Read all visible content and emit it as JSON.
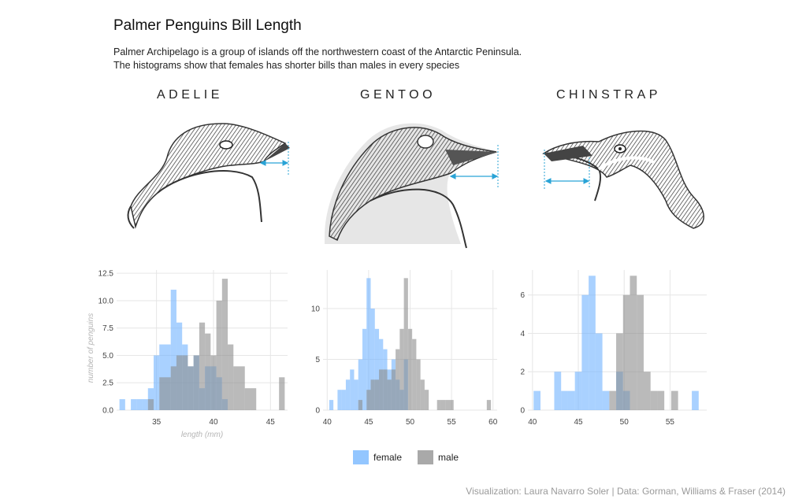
{
  "title": "Palmer Penguins Bill Length",
  "subtitle": [
    "Palmer Archipelago is a group of islands off the northwestern coast of the Antarctic Peninsula.",
    "The histograms show that females has shorter bills than males in every species"
  ],
  "species_labels": [
    "ADELIE",
    "GENTOO",
    "CHINSTRAP"
  ],
  "caption": "Visualization: Laura Navarro Soler | Data: Gorman, Williams & Fraser (2014)",
  "legend": [
    {
      "label": "female",
      "color": "#6fb3ff"
    },
    {
      "label": "male",
      "color": "#8c8c8c"
    }
  ],
  "colors": {
    "female": "#6fb3ff",
    "male": "#8c8c8c",
    "arrow": "#29a3d6",
    "grid": "#e6e6e6"
  },
  "icons": [
    "adelie-head-illustration",
    "gentoo-head-illustration",
    "chinstrap-head-illustration",
    "bill-length-arrow"
  ],
  "chart_data": [
    {
      "type": "bar",
      "panel": "ADELIE",
      "xlabel": "length (mm)",
      "ylabel": "number of penguins",
      "xlim": [
        31.5,
        46.5
      ],
      "ylim": [
        0,
        12.8
      ],
      "xticks": [
        35,
        40,
        45
      ],
      "yticks": [
        0,
        2.5,
        5,
        7.5,
        10,
        12.5
      ],
      "ytick_labels": [
        "0.0",
        "2.5",
        "5.0",
        "7.5",
        "10.0",
        "12.5"
      ],
      "bin_width": 0.5,
      "series": [
        {
          "name": "female",
          "bins": [
            [
              32,
              1
            ],
            [
              33,
              1
            ],
            [
              33.5,
              1
            ],
            [
              34,
              1
            ],
            [
              34.5,
              2
            ],
            [
              35,
              5
            ],
            [
              35.5,
              6
            ],
            [
              36,
              6
            ],
            [
              36.5,
              11
            ],
            [
              37,
              8
            ],
            [
              37.5,
              6
            ],
            [
              38,
              4
            ],
            [
              38.5,
              5
            ],
            [
              39,
              2
            ],
            [
              39.5,
              4
            ],
            [
              40,
              4
            ],
            [
              40.5,
              3
            ],
            [
              41,
              1
            ]
          ]
        },
        {
          "name": "male",
          "bins": [
            [
              34.5,
              1
            ],
            [
              35.5,
              3
            ],
            [
              36,
              3
            ],
            [
              36.5,
              4
            ],
            [
              37,
              5
            ],
            [
              37.5,
              5
            ],
            [
              38,
              4
            ],
            [
              38.5,
              5
            ],
            [
              39,
              8
            ],
            [
              39.5,
              7
            ],
            [
              40,
              5
            ],
            [
              40.5,
              10
            ],
            [
              41,
              12
            ],
            [
              41.5,
              6
            ],
            [
              42,
              4
            ],
            [
              42.5,
              4
            ],
            [
              43,
              2
            ],
            [
              43.5,
              2
            ],
            [
              46,
              3
            ]
          ]
        }
      ]
    },
    {
      "type": "bar",
      "panel": "GENTOO",
      "xlabel": "",
      "ylabel": "",
      "xlim": [
        39.5,
        60.5
      ],
      "ylim": [
        0,
        13.8
      ],
      "xticks": [
        40,
        45,
        50,
        55,
        60
      ],
      "yticks": [
        0,
        5,
        10
      ],
      "ytick_labels": [
        "0",
        "5",
        "10"
      ],
      "bin_width": 0.5,
      "series": [
        {
          "name": "female",
          "bins": [
            [
              40.5,
              1
            ],
            [
              41.5,
              2
            ],
            [
              42,
              2
            ],
            [
              42.5,
              3
            ],
            [
              43,
              4
            ],
            [
              43.5,
              3
            ],
            [
              44,
              5
            ],
            [
              44.5,
              8
            ],
            [
              45,
              13
            ],
            [
              45.5,
              10
            ],
            [
              46,
              8
            ],
            [
              46.5,
              7
            ],
            [
              47,
              6
            ],
            [
              47.5,
              4
            ],
            [
              48,
              5
            ],
            [
              48.5,
              3
            ],
            [
              49,
              2
            ],
            [
              49.5,
              5
            ]
          ]
        },
        {
          "name": "male",
          "bins": [
            [
              44,
              1
            ],
            [
              45,
              2
            ],
            [
              45.5,
              3
            ],
            [
              46,
              3
            ],
            [
              46.5,
              4
            ],
            [
              47,
              4
            ],
            [
              47.5,
              3
            ],
            [
              48,
              4
            ],
            [
              48.5,
              6
            ],
            [
              49,
              8
            ],
            [
              49.5,
              13
            ],
            [
              50,
              8
            ],
            [
              50.5,
              7
            ],
            [
              51,
              5
            ],
            [
              51.5,
              3
            ],
            [
              52,
              2
            ],
            [
              53.5,
              1
            ],
            [
              54,
              1
            ],
            [
              54.5,
              1
            ],
            [
              55,
              1
            ],
            [
              59.5,
              1
            ]
          ]
        }
      ]
    },
    {
      "type": "bar",
      "panel": "CHINSTRAP",
      "xlabel": "",
      "ylabel": "",
      "xlim": [
        39.5,
        59
      ],
      "ylim": [
        0,
        7.3
      ],
      "xticks": [
        40,
        45,
        50,
        55
      ],
      "yticks": [
        0,
        2,
        4,
        6
      ],
      "ytick_labels": [
        "0",
        "2",
        "4",
        "6"
      ],
      "bin_width": 0.75,
      "series": [
        {
          "name": "female",
          "bins": [
            [
              40.5,
              1
            ],
            [
              42.75,
              2
            ],
            [
              43.5,
              1
            ],
            [
              44.25,
              1
            ],
            [
              45,
              2
            ],
            [
              45.75,
              6
            ],
            [
              46.5,
              7
            ],
            [
              47.25,
              4
            ],
            [
              48,
              1
            ],
            [
              49.5,
              2
            ],
            [
              50.25,
              1
            ],
            [
              57.75,
              1
            ]
          ]
        },
        {
          "name": "male",
          "bins": [
            [
              48.75,
              1
            ],
            [
              49.5,
              4
            ],
            [
              50.25,
              6
            ],
            [
              51,
              7
            ],
            [
              51.75,
              6
            ],
            [
              52.5,
              2
            ],
            [
              53.25,
              1
            ],
            [
              54,
              1
            ],
            [
              55.5,
              1
            ]
          ]
        }
      ]
    }
  ]
}
